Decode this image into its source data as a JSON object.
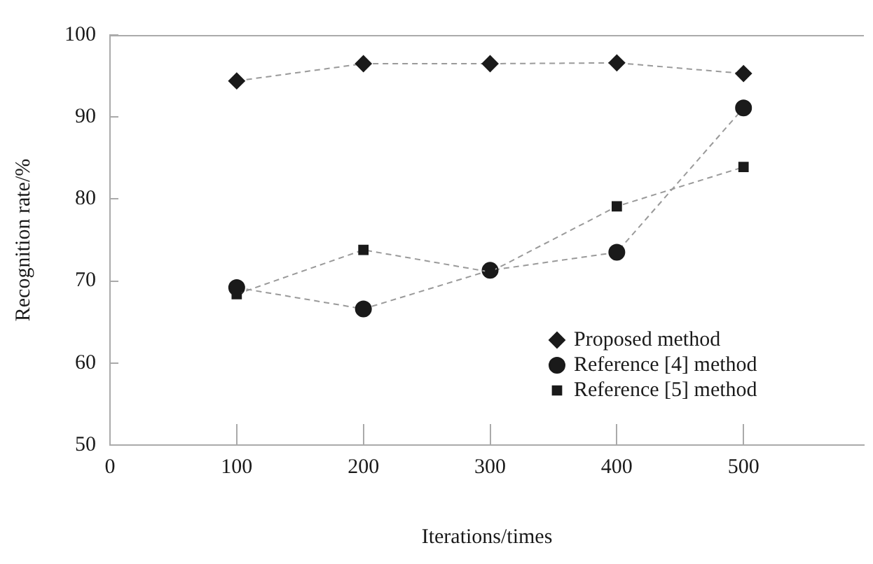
{
  "chart_data": {
    "type": "line",
    "xlabel": "Iterations/times",
    "ylabel": "Recognition rate/%",
    "x": [
      100,
      200,
      300,
      400,
      500
    ],
    "series": [
      {
        "name": "Proposed method",
        "color": "#1a1a1a",
        "marker": "diamond",
        "values": [
          94.4,
          96.5,
          96.5,
          96.6,
          95.3
        ]
      },
      {
        "name": "Reference [4] method",
        "color": "#1a1a1a",
        "marker": "circle",
        "values": [
          69.2,
          66.6,
          71.3,
          73.5,
          91.1
        ]
      },
      {
        "name": "Reference [5] method",
        "color": "#1a1a1a",
        "marker": "square",
        "values": [
          68.4,
          73.8,
          71.1,
          79.1,
          83.9
        ]
      }
    ],
    "line_style": "dashed",
    "xlim": [
      0,
      595
    ],
    "xticks": [
      0,
      100,
      200,
      300,
      400,
      500
    ],
    "ylim": [
      50,
      100
    ],
    "yticks": [
      50,
      60,
      70,
      80,
      90,
      100
    ],
    "grid": false,
    "legend": "bottom right"
  }
}
